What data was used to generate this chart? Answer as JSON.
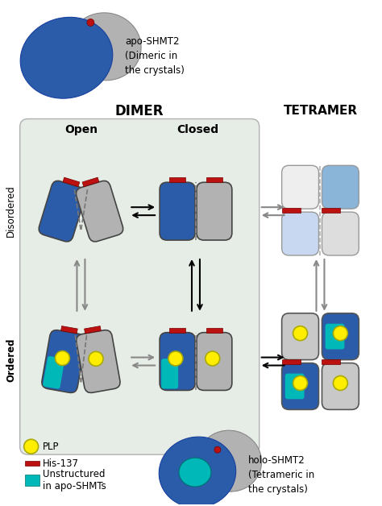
{
  "fig_width": 4.74,
  "fig_height": 6.28,
  "dpi": 100,
  "bg_color": "#ffffff",
  "blue": "#2a5caa",
  "blue2": "#3a7ac8",
  "light_blue": "#8ab4d8",
  "gray": "#b2b2b2",
  "gray2": "#c8c8c8",
  "teal": "#00b8b8",
  "yellow": "#ffee00",
  "red": "#bb1111",
  "panel_bg": "#e6ede6",
  "panel_edge": "#aaaaaa",
  "dimer_label": "DIMER",
  "tetramer_label": "TETRAMER",
  "open_label": "Open",
  "closed_label": "Closed",
  "disordered_label": "Disordered",
  "ordered_label": "Ordered",
  "legend_plp": "PLP",
  "legend_his": "His-137",
  "legend_unstr": "Unstructured\nin apo-SHMTs",
  "apo_label": "apo-SHMT2\n(Dimeric in\nthe crystals)",
  "holo_label": "holo-SHMT2\n(Tetrameric in\nthe crystals)"
}
